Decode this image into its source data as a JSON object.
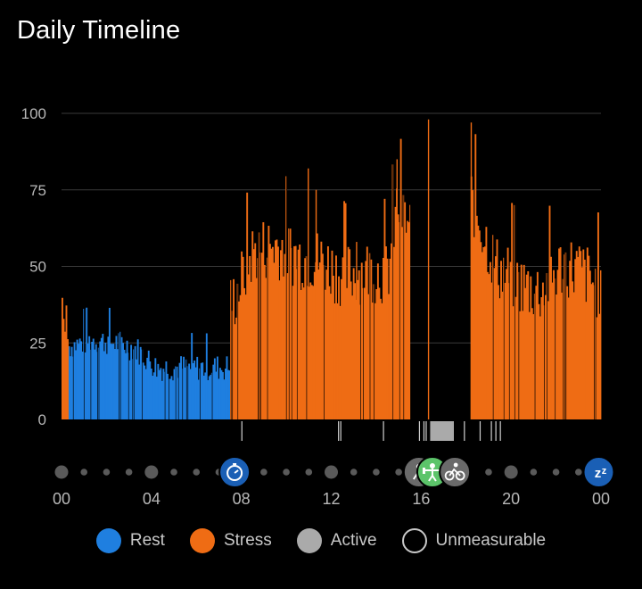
{
  "title": "Daily Timeline",
  "colors": {
    "rest": "#1f7fe0",
    "stress": "#ef6c14",
    "active": "#aaaaaa",
    "unmeasurable": "#000000",
    "gridline": "#3a3a3a",
    "timeline_dot": "#5a5a5a"
  },
  "legend": [
    {
      "label": "Rest",
      "color": "#1f7fe0",
      "outline": false
    },
    {
      "label": "Stress",
      "color": "#ef6c14",
      "outline": false
    },
    {
      "label": "Active",
      "color": "#aaaaaa",
      "outline": false
    },
    {
      "label": "Unmeasurable",
      "color": "#000000",
      "outline": true
    }
  ],
  "timeline_icons": [
    {
      "name": "clock-icon",
      "hour": 7.7,
      "kind": "stopwatch",
      "color": "#1a5fb5"
    },
    {
      "name": "person-icon",
      "hour": 15.9,
      "kind": "activity",
      "color": "#6a6a6a"
    },
    {
      "name": "strength-icon",
      "hour": 16.5,
      "kind": "strength",
      "color": "#5cc46a"
    },
    {
      "name": "bike-icon",
      "hour": 17.5,
      "kind": "cycling",
      "color": "#6a6a6a"
    },
    {
      "name": "sleep-icon",
      "hour": 23.9,
      "kind": "sleep",
      "color": "#1a5fb5"
    }
  ],
  "chart_data": {
    "type": "bar",
    "title": "Daily Timeline",
    "x_unit": "hour of day",
    "xlim": [
      0,
      24
    ],
    "ylim": [
      0,
      100
    ],
    "yticks": [
      0,
      25,
      50,
      75,
      100
    ],
    "xticks": [
      "00",
      "04",
      "08",
      "12",
      "16",
      "20",
      "00"
    ],
    "xtick_hours": [
      0,
      4,
      8,
      12,
      16,
      20,
      24
    ],
    "grid": true,
    "legend_position": "bottom",
    "series": [
      {
        "name": "Rest",
        "segments": [
          [
            0.3,
            7.5
          ]
        ],
        "profile": [
          [
            0.3,
            24
          ],
          [
            1.4,
            26
          ],
          [
            2.5,
            25
          ],
          [
            3.3,
            23
          ],
          [
            4.2,
            17
          ],
          [
            5.3,
            17
          ],
          [
            6.3,
            17
          ],
          [
            7.4,
            17
          ]
        ]
      },
      {
        "name": "Stress",
        "segments": [
          [
            0.0,
            0.3
          ],
          [
            7.5,
            15.5
          ],
          [
            18.2,
            24.0
          ]
        ],
        "profile": [
          [
            0.0,
            32
          ],
          [
            7.5,
            37
          ],
          [
            8.5,
            55
          ],
          [
            9.5,
            57
          ],
          [
            10.6,
            53
          ],
          [
            11.5,
            52
          ],
          [
            12.5,
            47
          ],
          [
            13.6,
            49
          ],
          [
            14.5,
            48
          ],
          [
            14.9,
            70
          ],
          [
            15.4,
            63
          ],
          [
            18.2,
            72
          ],
          [
            19.3,
            50
          ],
          [
            20.4,
            44
          ],
          [
            21.3,
            42
          ],
          [
            22.3,
            51
          ],
          [
            23.2,
            48
          ],
          [
            24.0,
            42
          ]
        ]
      },
      {
        "name": "Active",
        "segments": [
          [
            16.4,
            17.4
          ]
        ],
        "value": 0
      },
      {
        "name": "Unmeasurable",
        "segments": [
          [
            15.5,
            16.4
          ],
          [
            17.4,
            18.2
          ]
        ],
        "value": 0
      }
    ]
  }
}
